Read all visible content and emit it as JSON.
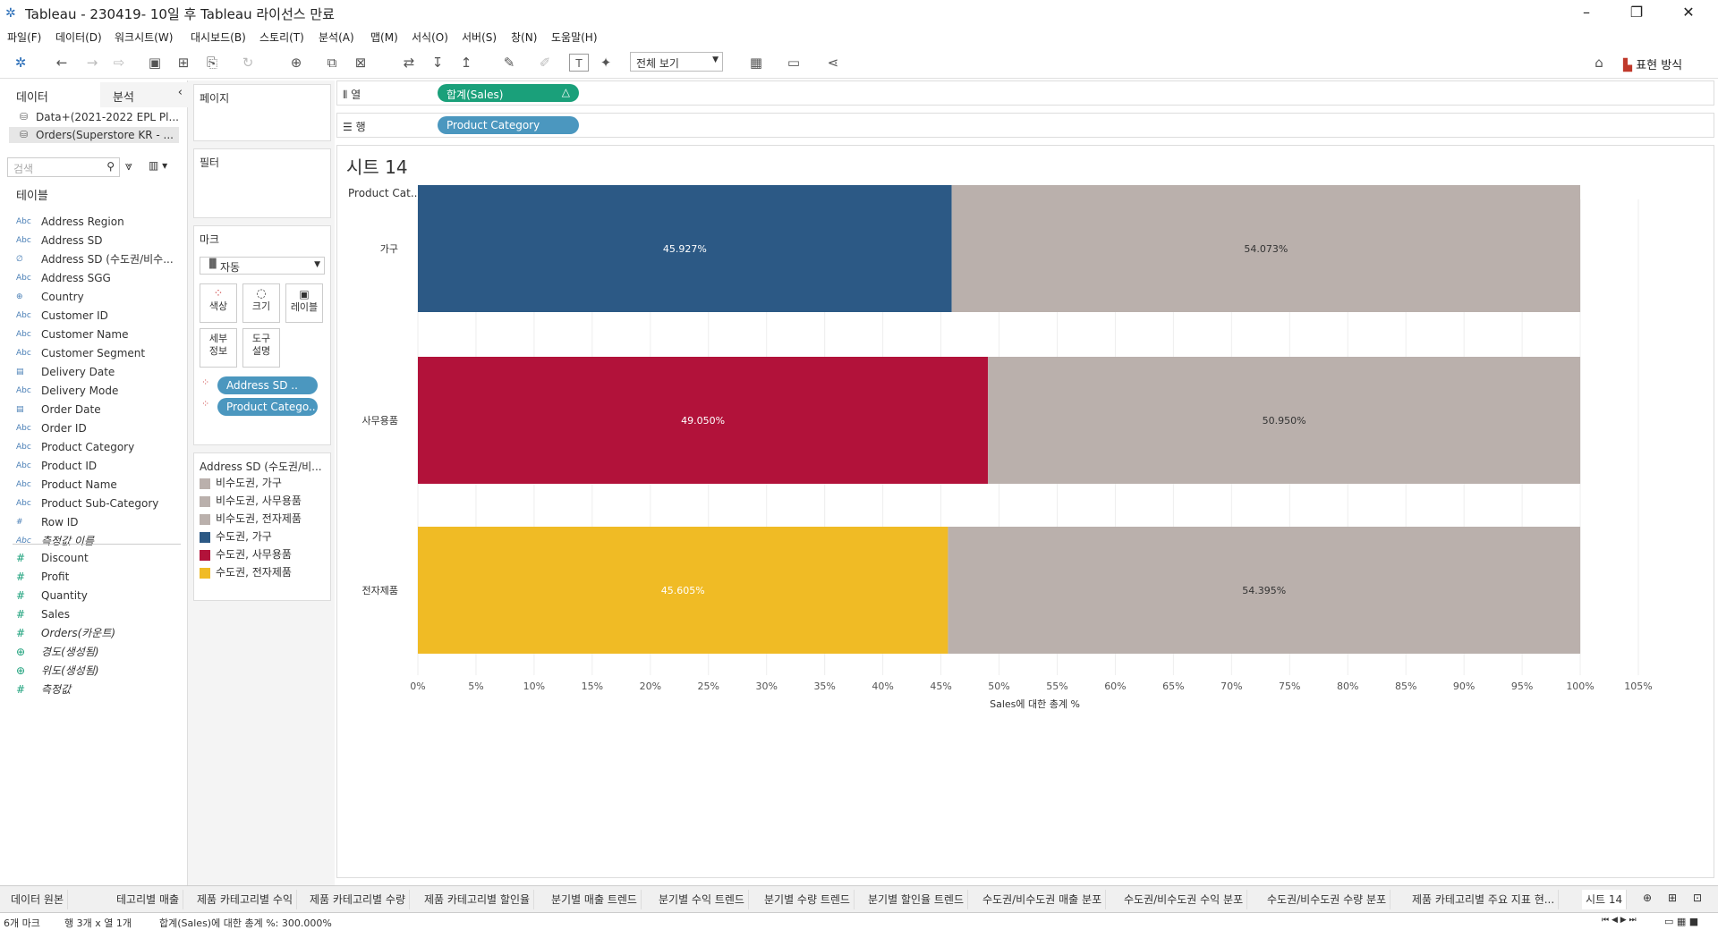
{
  "window": {
    "title": "Tableau - 230419- 10일 후 Tableau 라이선스 만료"
  },
  "menu": [
    "파일(F)",
    "데이터(D)",
    "워크시트(W)",
    "대시보드(B)",
    "스토리(T)",
    "분석(A)",
    "맵(M)",
    "서식(O)",
    "서버(S)",
    "창(N)",
    "도움말(H)"
  ],
  "toolbar": {
    "view_select": "전체 보기",
    "present_label": "표현 방식"
  },
  "left": {
    "tab_data": "데이터",
    "tab_analysis": "분석",
    "datasources": [
      "Data+(2021-2022 EPL Pl...",
      "Orders(Superstore KR - ..."
    ],
    "search_placeholder": "검색",
    "tables_header": "테이블",
    "dimensions": [
      {
        "icon": "Abc",
        "name": "Address Region"
      },
      {
        "icon": "Abc",
        "name": "Address SD"
      },
      {
        "icon": "∅",
        "name": "Address SD (수도권/비수..."
      },
      {
        "icon": "Abc",
        "name": "Address SGG"
      },
      {
        "icon": "⊕",
        "name": "Country"
      },
      {
        "icon": "Abc",
        "name": "Customer ID"
      },
      {
        "icon": "Abc",
        "name": "Customer Name"
      },
      {
        "icon": "Abc",
        "name": "Customer Segment"
      },
      {
        "icon": "▤",
        "name": "Delivery Date"
      },
      {
        "icon": "Abc",
        "name": "Delivery Mode"
      },
      {
        "icon": "▤",
        "name": "Order Date"
      },
      {
        "icon": "Abc",
        "name": "Order ID"
      },
      {
        "icon": "Abc",
        "name": "Product Category"
      },
      {
        "icon": "Abc",
        "name": "Product ID"
      },
      {
        "icon": "Abc",
        "name": "Product Name"
      },
      {
        "icon": "Abc",
        "name": "Product Sub-Category"
      },
      {
        "icon": "#",
        "name": "Row ID"
      },
      {
        "icon": "Abc",
        "name": "측정값 이름"
      }
    ],
    "measures": [
      {
        "icon": "#",
        "name": "Discount"
      },
      {
        "icon": "#",
        "name": "Profit"
      },
      {
        "icon": "#",
        "name": "Quantity"
      },
      {
        "icon": "#",
        "name": "Sales"
      },
      {
        "icon": "#",
        "name": "Orders(카운트)"
      },
      {
        "icon": "⊕",
        "name": "경도(생성됨)"
      },
      {
        "icon": "⊕",
        "name": "위도(생성됨)"
      },
      {
        "icon": "#",
        "name": "측정값"
      }
    ]
  },
  "cards": {
    "pages": "페이지",
    "filters": "필터",
    "marks": "마크",
    "mark_type": "자동",
    "mark_buttons": [
      "색상",
      "크기",
      "레이블",
      "세부\n정보",
      "도구\n설명"
    ],
    "mark_pills": [
      "Address SD ..",
      "Product Catego.."
    ],
    "legend_title": "Address SD (수도권/비...",
    "legend": [
      {
        "label": "비수도권, 가구",
        "color": "#bab0ac"
      },
      {
        "label": "비수도권, 사무용품",
        "color": "#bab0ac"
      },
      {
        "label": "비수도권, 전자제품",
        "color": "#bab0ac"
      },
      {
        "label": "수도권, 가구",
        "color": "#2c5985"
      },
      {
        "label": "수도권, 사무용품",
        "color": "#b2123a"
      },
      {
        "label": "수도권, 전자제품",
        "color": "#f0bb25"
      }
    ]
  },
  "shelves": {
    "columns_label": "열",
    "columns_pill": "합계(Sales)",
    "rows_label": "행",
    "rows_pill": "Product Category"
  },
  "sheet": {
    "title": "시트 14",
    "row_header": "Product Cat.."
  },
  "chart_data": {
    "type": "bar",
    "orientation": "horizontal-stacked",
    "categories": [
      "가구",
      "사무용품",
      "전자제품"
    ],
    "series": [
      {
        "name": "수도권",
        "values": [
          45.927,
          49.05,
          45.605
        ],
        "colors": [
          "#2c5985",
          "#b2123a",
          "#f0bb25"
        ],
        "labels": [
          "45.927%",
          "49.050%",
          "45.605%"
        ]
      },
      {
        "name": "비수도권",
        "values": [
          54.073,
          50.95,
          54.395
        ],
        "colors": [
          "#bab0ac",
          "#bab0ac",
          "#bab0ac"
        ],
        "labels": [
          "54.073%",
          "50.950%",
          "54.395%"
        ]
      }
    ],
    "xlabel": "Sales에 대한 총계 %",
    "xlim": [
      0,
      105
    ],
    "xticks": [
      "0%",
      "5%",
      "10%",
      "15%",
      "20%",
      "25%",
      "30%",
      "35%",
      "40%",
      "45%",
      "50%",
      "55%",
      "60%",
      "65%",
      "70%",
      "75%",
      "80%",
      "85%",
      "90%",
      "95%",
      "100%",
      "105%"
    ],
    "grid": true
  },
  "tabs": [
    "데이터 원본",
    "테고리별 매출",
    "제품 카테고리별 수익",
    "제품 카테고리별 수량",
    "제품 카테고리별 할인율",
    "분기별 매출 트렌드",
    "분기별 수익 트렌드",
    "분기별 수량 트렌드",
    "분기별 할인율 트렌드",
    "수도권/비수도권 매출 분포",
    "수도권/비수도권 수익 분포",
    "수도권/비수도권 수량 분포",
    "제품 카테고리별 주요 지표 현...",
    "시트 14"
  ],
  "status": {
    "marks": "6개 마크",
    "dims": "행 3개 x 열 1개",
    "sum": "합계(Sales)에 대한 총계 %: 300.000%"
  }
}
